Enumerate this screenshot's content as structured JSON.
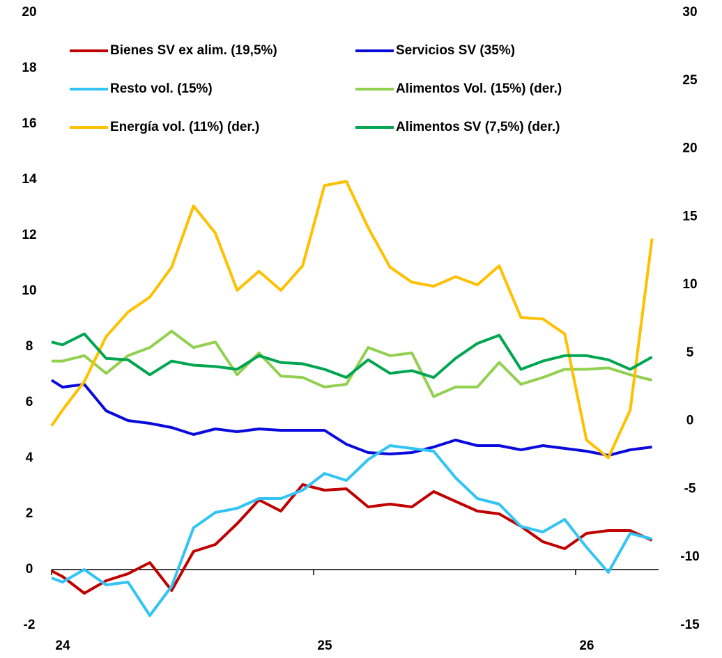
{
  "chart_data": {
    "type": "line",
    "x": [
      0,
      0.5,
      1.5,
      2.5,
      3.5,
      4.5,
      5.5,
      6.5,
      7.5,
      8.5,
      9.5,
      10.5,
      11.5,
      12.5,
      13.5,
      14.5,
      15.5,
      16.5,
      17.5,
      18.5,
      19.5,
      20.5,
      21.5,
      22.5,
      23.5,
      24.5,
      25.5,
      26.5,
      27.5
    ],
    "xlim": [
      0,
      27.8
    ],
    "xticks": [
      {
        "value": 0,
        "label": "24"
      },
      {
        "value": 12,
        "label": "25"
      },
      {
        "value": 24,
        "label": "26"
      }
    ],
    "ylim": [
      -2,
      20
    ],
    "yticks": [
      -2,
      0,
      2,
      4,
      6,
      8,
      10,
      12,
      14,
      16,
      18,
      20
    ],
    "y2lim": [
      -15,
      30
    ],
    "y2ticks": [
      -15,
      -10,
      -5,
      0,
      5,
      10,
      15,
      20,
      25,
      30
    ],
    "grid": false,
    "series": [
      {
        "name": "Bienes SV ex alim. (19,5%)",
        "color": "#c00000",
        "values": [
          -0.05,
          -0.25,
          -0.85,
          -0.4,
          -0.15,
          0.25,
          -0.75,
          0.65,
          0.9,
          1.65,
          2.5,
          2.1,
          3.05,
          2.85,
          2.9,
          2.25,
          2.35,
          2.25,
          2.8,
          2.45,
          2.1,
          2.0,
          1.55,
          1.0,
          0.75,
          1.3,
          1.4,
          1.4,
          1.05
        ]
      },
      {
        "name": "Servicios SV (35%)",
        "color": "#0a0adc",
        "values": [
          6.8,
          6.55,
          6.65,
          5.7,
          5.35,
          5.25,
          5.1,
          4.85,
          5.05,
          4.95,
          5.05,
          5.0,
          5.0,
          5.0,
          4.5,
          4.2,
          4.15,
          4.2,
          4.4,
          4.65,
          4.45,
          4.45,
          4.3,
          4.45,
          4.35,
          4.25,
          4.1,
          4.3,
          4.4
        ]
      },
      {
        "name": "Resto vol. (15%)",
        "color": "#33c4f5",
        "values": [
          -0.3,
          -0.45,
          0.0,
          -0.55,
          -0.45,
          -1.65,
          -0.6,
          1.5,
          2.05,
          2.2,
          2.55,
          2.55,
          2.85,
          3.45,
          3.2,
          3.95,
          4.45,
          4.35,
          4.25,
          3.3,
          2.55,
          2.35,
          1.55,
          1.35,
          1.8,
          0.8,
          -0.1,
          1.3,
          1.1
        ]
      },
      {
        "name": "Alimentos Vol. (15%) (der.)",
        "color": "#92d050",
        "axis": "y2",
        "values": [
          4.4,
          4.4,
          4.8,
          3.5,
          4.8,
          5.4,
          6.6,
          5.4,
          5.8,
          3.4,
          5.0,
          3.3,
          3.2,
          2.5,
          2.7,
          5.4,
          4.8,
          5.0,
          1.8,
          2.5,
          2.5,
          4.3,
          2.7,
          3.2,
          3.8,
          3.8,
          3.9,
          3.4,
          3.0
        ]
      },
      {
        "name": "Energía vol. (11%) (der.)",
        "color": "#ffc000",
        "axis": "y2",
        "values": [
          -0.35,
          0.8,
          2.9,
          6.2,
          8.0,
          9.1,
          11.3,
          15.8,
          13.8,
          9.6,
          11.0,
          9.6,
          11.4,
          17.3,
          17.6,
          14.2,
          11.3,
          10.2,
          9.9,
          10.6,
          10.0,
          11.4,
          7.6,
          7.5,
          6.4,
          -1.4,
          -2.7,
          0.8,
          13.4
        ]
      },
      {
        "name": "Alimentos SV (7,5%) (der.)",
        "color": "#00a550",
        "axis": "y2",
        "values": [
          5.8,
          5.6,
          6.4,
          4.6,
          4.5,
          3.4,
          4.4,
          4.1,
          4.0,
          3.8,
          4.8,
          4.3,
          4.2,
          3.8,
          3.2,
          4.5,
          3.5,
          3.7,
          3.2,
          4.6,
          5.7,
          6.3,
          3.8,
          4.4,
          4.8,
          4.8,
          4.5,
          3.8,
          4.7
        ]
      }
    ]
  }
}
